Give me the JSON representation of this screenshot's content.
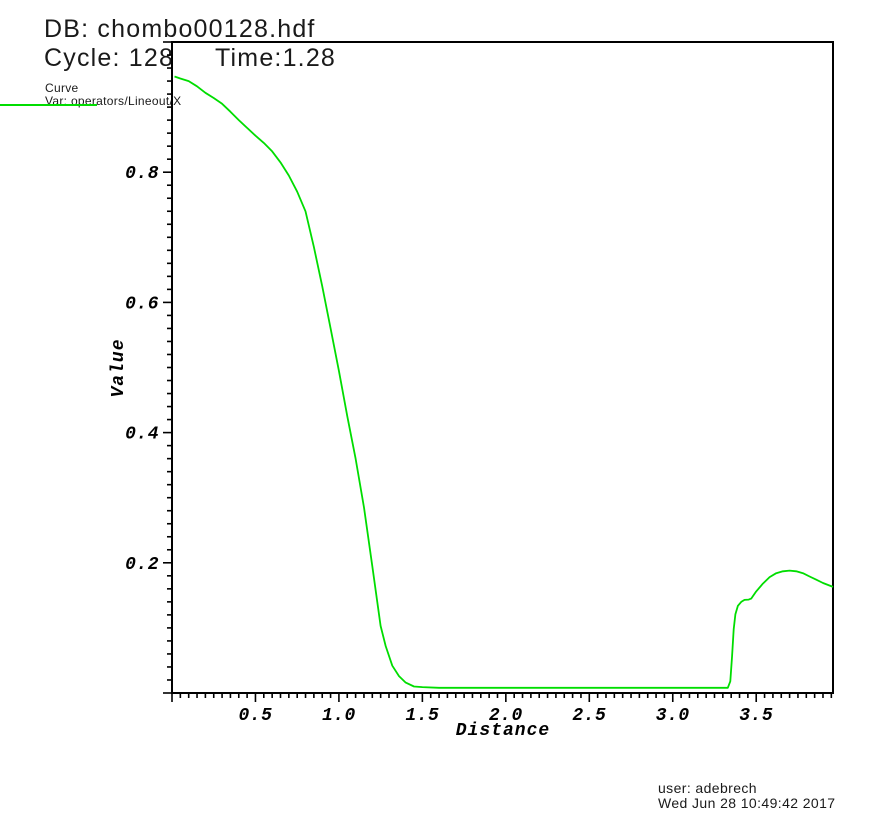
{
  "header": {
    "db_label": "DB: chombo00128.hdf",
    "cycle_label": "Cycle: 128",
    "time_label": "Time:1.28"
  },
  "legend": {
    "plot_type_label": "Curve",
    "var_label": "Var: operators/Lineout/X"
  },
  "footer": {
    "user": "user: adebrech",
    "datetime": "Wed Jun 28 10:49:42 2017"
  },
  "chart_data": {
    "type": "line",
    "title": "",
    "xlabel": "Distance",
    "ylabel": "Value",
    "xlim": [
      0,
      3.96
    ],
    "ylim": [
      0,
      1.0
    ],
    "x_major_tick_step": 0.5,
    "x_minor_tick_step": 0.05,
    "y_major_tick_step": 0.2,
    "y_minor_tick_step": 0.02,
    "x_tick_labels": [
      {
        "value": 0.5,
        "label": "0.5"
      },
      {
        "value": 1.0,
        "label": "1.0"
      },
      {
        "value": 1.5,
        "label": "1.5"
      },
      {
        "value": 2.0,
        "label": "2.0"
      },
      {
        "value": 2.5,
        "label": "2.5"
      },
      {
        "value": 3.0,
        "label": "3.0"
      },
      {
        "value": 3.5,
        "label": "3.5"
      }
    ],
    "y_tick_labels": [
      {
        "value": 0.2,
        "label": "0.2"
      },
      {
        "value": 0.4,
        "label": "0.4"
      },
      {
        "value": 0.6,
        "label": "0.6"
      },
      {
        "value": 0.8,
        "label": "0.8"
      }
    ],
    "grid": false,
    "legend_position": "top-left",
    "axis_color": "#000000",
    "series": [
      {
        "name": "operators/Lineout/X",
        "color": "#00dd00",
        "points": [
          [
            0.015,
            0.947
          ],
          [
            0.05,
            0.944
          ],
          [
            0.1,
            0.94
          ],
          [
            0.15,
            0.932
          ],
          [
            0.2,
            0.922
          ],
          [
            0.25,
            0.914
          ],
          [
            0.3,
            0.905
          ],
          [
            0.35,
            0.893
          ],
          [
            0.4,
            0.88
          ],
          [
            0.45,
            0.868
          ],
          [
            0.5,
            0.856
          ],
          [
            0.55,
            0.845
          ],
          [
            0.6,
            0.832
          ],
          [
            0.65,
            0.815
          ],
          [
            0.7,
            0.795
          ],
          [
            0.75,
            0.77
          ],
          [
            0.8,
            0.74
          ],
          [
            0.85,
            0.685
          ],
          [
            0.9,
            0.625
          ],
          [
            0.95,
            0.56
          ],
          [
            1.0,
            0.495
          ],
          [
            1.05,
            0.425
          ],
          [
            1.1,
            0.36
          ],
          [
            1.15,
            0.285
          ],
          [
            1.2,
            0.195
          ],
          [
            1.25,
            0.103
          ],
          [
            1.28,
            0.072
          ],
          [
            1.32,
            0.042
          ],
          [
            1.36,
            0.026
          ],
          [
            1.4,
            0.016
          ],
          [
            1.45,
            0.01
          ],
          [
            1.5,
            0.009
          ],
          [
            1.6,
            0.008
          ],
          [
            1.8,
            0.008
          ],
          [
            2.0,
            0.008
          ],
          [
            2.25,
            0.008
          ],
          [
            2.5,
            0.008
          ],
          [
            2.75,
            0.008
          ],
          [
            3.0,
            0.008
          ],
          [
            3.2,
            0.008
          ],
          [
            3.33,
            0.008
          ],
          [
            3.345,
            0.018
          ],
          [
            3.355,
            0.055
          ],
          [
            3.365,
            0.098
          ],
          [
            3.375,
            0.121
          ],
          [
            3.39,
            0.134
          ],
          [
            3.41,
            0.14
          ],
          [
            3.43,
            0.143
          ],
          [
            3.455,
            0.1435
          ],
          [
            3.47,
            0.145
          ],
          [
            3.5,
            0.156
          ],
          [
            3.54,
            0.168
          ],
          [
            3.58,
            0.178
          ],
          [
            3.62,
            0.184
          ],
          [
            3.66,
            0.187
          ],
          [
            3.7,
            0.188
          ],
          [
            3.74,
            0.187
          ],
          [
            3.78,
            0.184
          ],
          [
            3.82,
            0.179
          ],
          [
            3.86,
            0.174
          ],
          [
            3.9,
            0.169
          ],
          [
            3.96,
            0.163
          ]
        ]
      }
    ]
  }
}
